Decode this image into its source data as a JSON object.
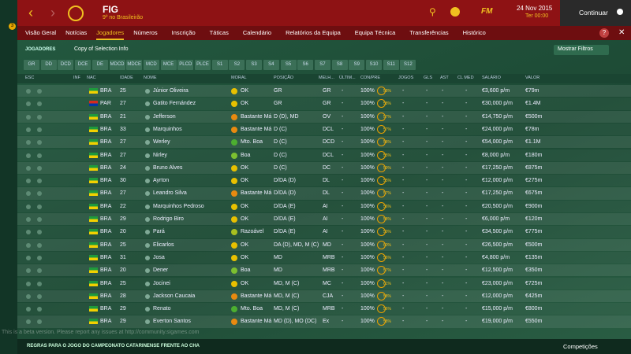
{
  "header": {
    "club": "FIG",
    "position": "9º no Brasileirão",
    "date": "24 Nov 2015",
    "time": "Ter 00:00",
    "continue": "Continuar"
  },
  "sidebar": {
    "badge": "3"
  },
  "menu": {
    "items": [
      "Visão Geral",
      "Notícias",
      "Jogadores",
      "Números",
      "Inscrição",
      "Táticas",
      "Calendário",
      "Relatórios da Equipa",
      "Equipa Técnica",
      "Transferências",
      "Histórico"
    ],
    "active": 2
  },
  "toolbar": {
    "tab": "JOGADORES",
    "view": "Copy of Selection Info",
    "filters": "Mostrar Filtros"
  },
  "position_buttons": [
    "GR",
    "DD",
    "DCD",
    "DCE",
    "DE",
    "MDCD",
    "MDCE",
    "MCD",
    "MCE",
    "PLCD",
    "PLCE",
    "S1",
    "S2",
    "S3",
    "S4",
    "S5",
    "S6",
    "S7",
    "S8",
    "S9",
    "S10",
    "S11",
    "S12"
  ],
  "table": {
    "columns": [
      "ESC",
      "INF",
      "NAC",
      "IDADE",
      "NOME",
      "MORAL",
      "POSIÇÃO",
      "MELH...",
      "ÚLTIM...",
      "CON/PRE",
      "JOGOS",
      "GLS",
      "AST",
      "CL MED",
      "SALÁRIO",
      "VALOR"
    ],
    "rows": [
      {
        "cells": [
          "BRA",
          "25",
          "Júnior Oliveira",
          "OK",
          "GR",
          "GR",
          "-",
          "100%",
          "58%",
          "-",
          "-",
          "-",
          "-",
          "€3,600 p/m",
          "€79m"
        ],
        "moral_color": "#e8c000",
        "flag_colors": [
          "#1e9a3c",
          "#f2d000"
        ]
      },
      {
        "cells": [
          "PAR",
          "27",
          "Gatito Fernández",
          "OK",
          "GR",
          "GR",
          "-",
          "100%",
          "58%",
          "-",
          "-",
          "-",
          "-",
          "€30,000 p/m",
          "€1.4M"
        ],
        "moral_color": "#e8c000",
        "flag_colors": [
          "#d52b1e",
          "#0038a8"
        ]
      },
      {
        "cells": [
          "BRA",
          "21",
          "Jefferson",
          "Bastante Má",
          "D (D), MD",
          "OV",
          "-",
          "100%",
          "57%",
          "-",
          "-",
          "-",
          "-",
          "€14,750 p/m",
          "€500m"
        ],
        "moral_color": "#e88a10",
        "flag_colors": [
          "#1e9a3c",
          "#f2d000"
        ]
      },
      {
        "cells": [
          "BRA",
          "33",
          "Marquinhos",
          "Bastante Má",
          "D (C)",
          "DCL",
          "-",
          "100%",
          "57%",
          "-",
          "-",
          "-",
          "-",
          "€24,000 p/m",
          "€78m"
        ],
        "moral_color": "#e88a10",
        "flag_colors": [
          "#1e9a3c",
          "#f2d000"
        ]
      },
      {
        "cells": [
          "BRA",
          "27",
          "Werley",
          "Mto. Boa",
          "D (C)",
          "DCD",
          "-",
          "100%",
          "58%",
          "-",
          "-",
          "-",
          "-",
          "€54,000 p/m",
          "€1.1M"
        ],
        "moral_color": "#4caf30",
        "flag_colors": [
          "#1e9a3c",
          "#f2d000"
        ]
      },
      {
        "cells": [
          "BRA",
          "27",
          "Nirley",
          "Boa",
          "D (C)",
          "DCL",
          "-",
          "100%",
          "55%",
          "-",
          "-",
          "-",
          "-",
          "€8,000 p/m",
          "€180m"
        ],
        "moral_color": "#7cbf30",
        "flag_colors": [
          "#1e9a3c",
          "#f2d000"
        ]
      },
      {
        "cells": [
          "BRA",
          "24",
          "Bruno Alves",
          "OK",
          "D (C)",
          "DC",
          "-",
          "100%",
          "59%",
          "-",
          "-",
          "-",
          "-",
          "€17,250 p/m",
          "€875m"
        ],
        "moral_color": "#e8c000",
        "flag_colors": [
          "#1e9a3c",
          "#f2d000"
        ]
      },
      {
        "cells": [
          "BRA",
          "30",
          "Ayrton",
          "OK",
          "D/DA (D)",
          "DL",
          "-",
          "100%",
          "55%",
          "-",
          "-",
          "-",
          "-",
          "€12,000 p/m",
          "€275m"
        ],
        "moral_color": "#e8c000",
        "flag_colors": [
          "#1e9a3c",
          "#f2d000"
        ]
      },
      {
        "cells": [
          "BRA",
          "27",
          "Leandro Silva",
          "Bastante Má",
          "D/DA (D)",
          "DL",
          "-",
          "100%",
          "57%",
          "-",
          "-",
          "-",
          "-",
          "€17,250 p/m",
          "€675m"
        ],
        "moral_color": "#e88a10",
        "flag_colors": [
          "#1e9a3c",
          "#f2d000"
        ]
      },
      {
        "cells": [
          "BRA",
          "22",
          "Marquinhos Pedroso",
          "OK",
          "D/DA (E)",
          "AI",
          "-",
          "100%",
          "56%",
          "-",
          "-",
          "-",
          "-",
          "€20,500 p/m",
          "€900m"
        ],
        "moral_color": "#e8c000",
        "flag_colors": [
          "#1e9a3c",
          "#f2d000"
        ]
      },
      {
        "cells": [
          "BRA",
          "29",
          "Rodrigo Biro",
          "OK",
          "D/DA (E)",
          "AI",
          "-",
          "100%",
          "58%",
          "-",
          "-",
          "-",
          "-",
          "€6,000 p/m",
          "€120m"
        ],
        "moral_color": "#e8c000",
        "flag_colors": [
          "#1e9a3c",
          "#f2d000"
        ]
      },
      {
        "cells": [
          "BRA",
          "20",
          "Pará",
          "Razoável",
          "D/DA (E)",
          "AI",
          "-",
          "100%",
          "59%",
          "-",
          "-",
          "-",
          "-",
          "€34,500 p/m",
          "€775m"
        ],
        "moral_color": "#a8c020",
        "flag_colors": [
          "#1e9a3c",
          "#f2d000"
        ]
      },
      {
        "cells": [
          "BRA",
          "25",
          "Elicarlos",
          "OK",
          "DA (D), MD, M (C)",
          "MD",
          "-",
          "100%",
          "60%",
          "-",
          "-",
          "-",
          "-",
          "€26,500 p/m",
          "€500m"
        ],
        "moral_color": "#e8c000",
        "flag_colors": [
          "#1e9a3c",
          "#f2d000"
        ]
      },
      {
        "cells": [
          "BRA",
          "31",
          "Josa",
          "OK",
          "MD",
          "MRB",
          "-",
          "100%",
          "56%",
          "-",
          "-",
          "-",
          "-",
          "€4,800 p/m",
          "€135m"
        ],
        "moral_color": "#e8c000",
        "flag_colors": [
          "#1e9a3c",
          "#f2d000"
        ]
      },
      {
        "cells": [
          "BRA",
          "20",
          "Dener",
          "Boa",
          "MD",
          "MRB",
          "-",
          "100%",
          "57%",
          "-",
          "-",
          "-",
          "-",
          "€12,500 p/m",
          "€350m"
        ],
        "moral_color": "#7cbf30",
        "flag_colors": [
          "#1e9a3c",
          "#f2d000"
        ]
      },
      {
        "cells": [
          "BRA",
          "25",
          "Jocinei",
          "OK",
          "MD, M (C)",
          "MC",
          "-",
          "100%",
          "61%",
          "-",
          "-",
          "-",
          "-",
          "€23,000 p/m",
          "€725m"
        ],
        "moral_color": "#e8c000",
        "flag_colors": [
          "#1e9a3c",
          "#f2d000"
        ]
      },
      {
        "cells": [
          "BRA",
          "28",
          "Jackson Caucaia",
          "Bastante Má",
          "MD, M (C)",
          "CJA",
          "-",
          "100%",
          "58%",
          "-",
          "-",
          "-",
          "-",
          "€12,000 p/m",
          "€425m"
        ],
        "moral_color": "#e88a10",
        "flag_colors": [
          "#1e9a3c",
          "#f2d000"
        ]
      },
      {
        "cells": [
          "BRA",
          "29",
          "Renato",
          "Mto. Boa",
          "MD, M (C)",
          "MRB",
          "-",
          "100%",
          "56%",
          "-",
          "-",
          "-",
          "-",
          "€15,000 p/m",
          "€800m"
        ],
        "moral_color": "#4caf30",
        "flag_colors": [
          "#1e9a3c",
          "#f2d000"
        ]
      },
      {
        "cells": [
          "BRA",
          "29",
          "Everton Santos",
          "Bastante Má",
          "MD (D), MO (DC)",
          "Ex",
          "-",
          "100%",
          "58%",
          "-",
          "-",
          "-",
          "-",
          "€19,000 p/m",
          "€550m"
        ],
        "moral_color": "#e88a10",
        "flag_colors": [
          "#1e9a3c",
          "#f2d000"
        ]
      }
    ]
  },
  "watermark": "This is a beta version. Please report any issues at http://community.sigames.com",
  "footer": {
    "news": "REGRAS PARA O JOGO DO CAMPEONATO CATARINENSE FRENTE AO CHA",
    "competitions": "Competições"
  }
}
